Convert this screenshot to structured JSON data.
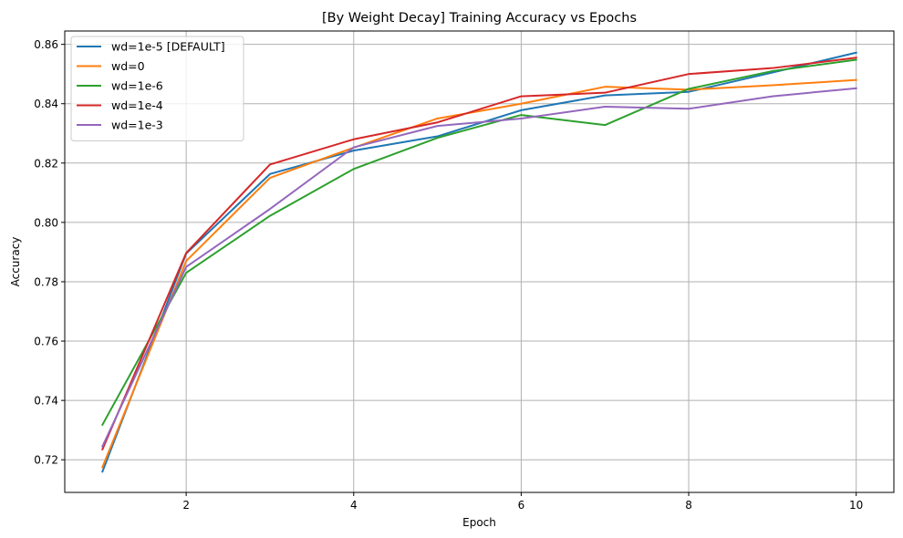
{
  "chart_data": {
    "type": "line",
    "title": "[By Weight Decay] Training Accuracy vs Epochs",
    "xlabel": "Epoch",
    "ylabel": "Accuracy",
    "x": [
      1,
      2,
      3,
      4,
      5,
      6,
      7,
      8,
      9,
      10
    ],
    "xlim": [
      0.55,
      10.45
    ],
    "ylim": [
      0.709,
      0.8645
    ],
    "xticks": [
      2,
      4,
      6,
      8,
      10
    ],
    "xtick_labels": [
      "2",
      "4",
      "6",
      "8",
      "10"
    ],
    "yticks": [
      0.72,
      0.74,
      0.76,
      0.78,
      0.8,
      0.82,
      0.84,
      0.86
    ],
    "ytick_labels": [
      "0.72",
      "0.74",
      "0.76",
      "0.78",
      "0.80",
      "0.82",
      "0.84",
      "0.86"
    ],
    "grid": true,
    "legend_position": "upper-left",
    "series": [
      {
        "name": "wd=1e-5 [DEFAULT]",
        "color": "#1f77b4",
        "values": [
          0.716,
          0.7895,
          0.8163,
          0.8242,
          0.829,
          0.8378,
          0.8428,
          0.844,
          0.8505,
          0.8572
        ]
      },
      {
        "name": "wd=0",
        "color": "#ff7f0e",
        "values": [
          0.7175,
          0.787,
          0.815,
          0.8252,
          0.835,
          0.84,
          0.8457,
          0.8447,
          0.8462,
          0.848
        ]
      },
      {
        "name": "wd=1e-6",
        "color": "#2ca02c",
        "values": [
          0.7318,
          0.783,
          0.8022,
          0.818,
          0.8285,
          0.8362,
          0.8328,
          0.845,
          0.851,
          0.8548
        ]
      },
      {
        "name": "wd=1e-4",
        "color": "#d62728",
        "values": [
          0.7235,
          0.7897,
          0.8195,
          0.828,
          0.8337,
          0.8425,
          0.8437,
          0.85,
          0.852,
          0.8555
        ]
      },
      {
        "name": "wd=1e-3",
        "color": "#9467bd",
        "values": [
          0.7245,
          0.785,
          0.8045,
          0.8253,
          0.8325,
          0.835,
          0.839,
          0.8383,
          0.8425,
          0.8452
        ]
      }
    ]
  }
}
